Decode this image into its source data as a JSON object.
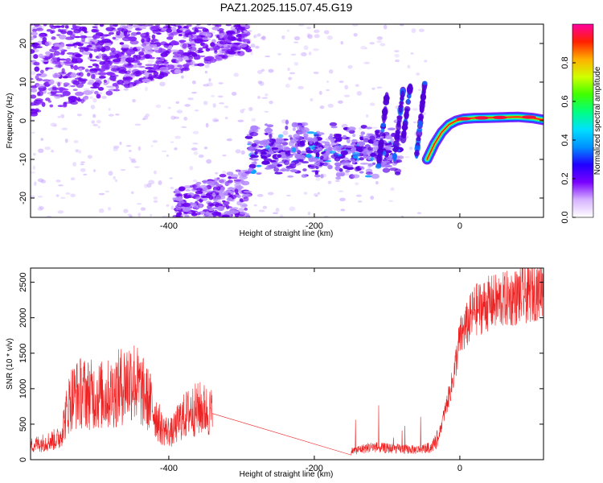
{
  "title": "PAZ1.2025.115.07.45.G19",
  "chart_data": [
    {
      "type": "heatmap",
      "xlabel": "Height of straight line (km)",
      "ylabel": "Frequency (Hz)",
      "xlim": [
        -590,
        115
      ],
      "ylim": [
        -25,
        25
      ],
      "x_ticks": [
        -400,
        -200,
        0
      ],
      "y_ticks": [
        -20,
        -10,
        0,
        10,
        20
      ],
      "colorbar": {
        "label": "Normalized spectral amplitude",
        "range": [
          0,
          1
        ],
        "ticks": [
          0.0,
          0.2,
          0.4,
          0.6,
          0.8
        ],
        "colormap": [
          "#ffffff",
          "#d6b3ff",
          "#7a00ff",
          "#2000ff",
          "#0090ff",
          "#00e0ff",
          "#00ff80",
          "#40ff00",
          "#d0ff00",
          "#ffb000",
          "#ff2000",
          "#ff00a0"
        ]
      },
      "features": {
        "upper_band": {
          "x_range": [
            -590,
            -290
          ],
          "freq_at_start": 5,
          "freq_at_end": 22
        },
        "lower_band": {
          "x_range": [
            -390,
            -290
          ],
          "freq_range": [
            -25,
            -18
          ]
        },
        "middle_band": {
          "x_range": [
            -290,
            -80
          ],
          "freq_range": [
            -12,
            -3
          ]
        },
        "diagonal_streaks": [
          {
            "x": [
              -112,
              -100
            ],
            "y": [
              -12,
              7
            ]
          },
          {
            "x": [
              -90,
              -78
            ],
            "y": [
              -10,
              8
            ]
          },
          {
            "x": [
              -78,
              -68
            ],
            "y": [
              -5,
              9
            ]
          },
          {
            "x": [
              -60,
              -48
            ],
            "y": [
              -10,
              10
            ]
          }
        ],
        "strong_signal": {
          "x": [
            -45,
            -35,
            -25,
            -15,
            -5,
            5,
            20,
            40,
            60,
            80,
            100,
            115
          ],
          "y": [
            -10,
            -6,
            -3,
            -1,
            0,
            0.5,
            0.7,
            0.8,
            0.9,
            1.0,
            0.7,
            0.2
          ]
        }
      }
    },
    {
      "type": "line",
      "xlabel": "Height of straight line (km)",
      "ylabel": "SNR (10 * v/v)",
      "xlim": [
        -590,
        115
      ],
      "ylim": [
        0,
        2700
      ],
      "x_ticks": [
        -400,
        -200,
        0
      ],
      "y_ticks": [
        0,
        500,
        1000,
        1500,
        2000,
        2500
      ],
      "color": "#ee2222",
      "series": [
        {
          "x": [
            -590,
            -565,
            -550,
            -535,
            -520,
            -500,
            -480,
            -460,
            -450,
            -440,
            -425,
            -410,
            -395,
            -385,
            -370,
            -355,
            -340,
            -150,
            -140,
            -120,
            -100,
            -80,
            -60,
            -40,
            -30,
            -20,
            -10,
            0,
            10,
            20,
            40,
            60,
            80,
            100,
            115
          ],
          "y": [
            200,
            260,
            300,
            870,
            950,
            900,
            920,
            1080,
            1150,
            1000,
            800,
            440,
            380,
            560,
            680,
            720,
            650,
            120,
            140,
            180,
            160,
            150,
            140,
            170,
            300,
            700,
            1100,
            1700,
            1900,
            2100,
            2200,
            2250,
            2300,
            2350,
            2450
          ]
        }
      ]
    }
  ]
}
